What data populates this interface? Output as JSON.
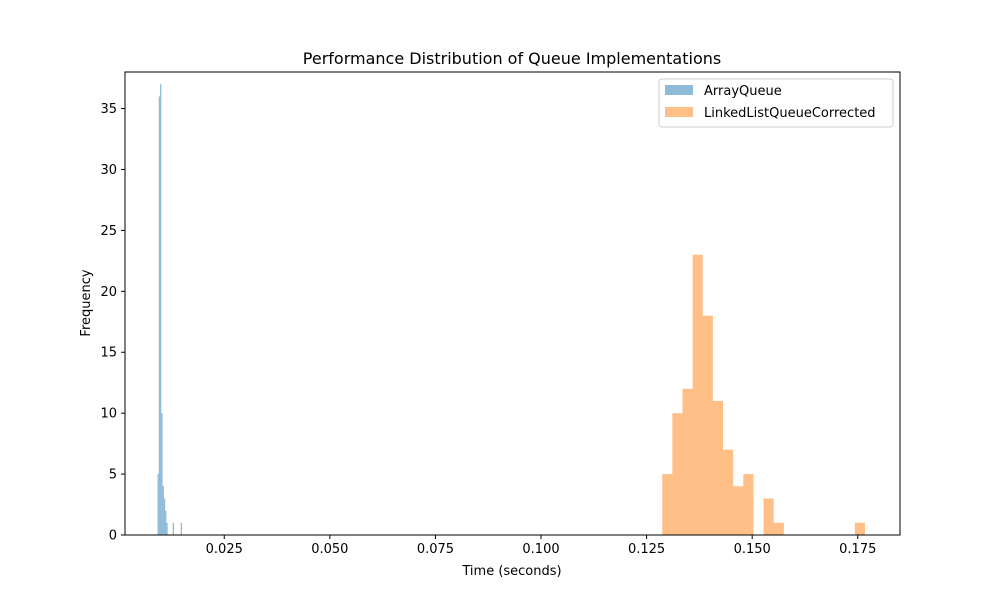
{
  "chart_data": {
    "type": "histogram",
    "title": "Performance Distribution of Queue Implementations",
    "xlabel": "Time (seconds)",
    "ylabel": "Frequency",
    "xlim": [
      0.0015,
      0.185
    ],
    "ylim": [
      0,
      38
    ],
    "xticks": [
      0.025,
      0.05,
      0.075,
      0.1,
      0.125,
      0.15,
      0.175
    ],
    "xtick_labels": [
      "0.025",
      "0.050",
      "0.075",
      "0.100",
      "0.125",
      "0.150",
      "0.175"
    ],
    "yticks": [
      0,
      5,
      10,
      15,
      20,
      25,
      30,
      35
    ],
    "ytick_labels": [
      "0",
      "5",
      "10",
      "15",
      "20",
      "25",
      "30",
      "35"
    ],
    "grid": false,
    "legend_position": "top-right",
    "series": [
      {
        "name": "ArrayQueue",
        "color": "#1f77b4",
        "alpha": 0.5,
        "bins": [
          {
            "x0": 0.0092,
            "x1": 0.0095,
            "count": 5
          },
          {
            "x0": 0.0095,
            "x1": 0.0098,
            "count": 36
          },
          {
            "x0": 0.0098,
            "x1": 0.0101,
            "count": 37
          },
          {
            "x0": 0.0101,
            "x1": 0.0104,
            "count": 10
          },
          {
            "x0": 0.0104,
            "x1": 0.0107,
            "count": 4
          },
          {
            "x0": 0.0107,
            "x1": 0.011,
            "count": 3
          },
          {
            "x0": 0.011,
            "x1": 0.0113,
            "count": 2
          },
          {
            "x0": 0.0113,
            "x1": 0.0116,
            "count": 1
          },
          {
            "x0": 0.0128,
            "x1": 0.0131,
            "count": 1
          },
          {
            "x0": 0.0147,
            "x1": 0.015,
            "count": 1
          }
        ]
      },
      {
        "name": "LinkedListQueueCorrected",
        "color": "#ff7f0e",
        "alpha": 0.5,
        "bins": [
          {
            "x0": 0.1287,
            "x1": 0.1311,
            "count": 5
          },
          {
            "x0": 0.1311,
            "x1": 0.1335,
            "count": 10
          },
          {
            "x0": 0.1335,
            "x1": 0.1359,
            "count": 12
          },
          {
            "x0": 0.1359,
            "x1": 0.1383,
            "count": 23
          },
          {
            "x0": 0.1383,
            "x1": 0.1407,
            "count": 18
          },
          {
            "x0": 0.1407,
            "x1": 0.1431,
            "count": 11
          },
          {
            "x0": 0.1431,
            "x1": 0.1455,
            "count": 7
          },
          {
            "x0": 0.1455,
            "x1": 0.1479,
            "count": 4
          },
          {
            "x0": 0.1479,
            "x1": 0.1503,
            "count": 5
          },
          {
            "x0": 0.1527,
            "x1": 0.1551,
            "count": 3
          },
          {
            "x0": 0.1551,
            "x1": 0.1575,
            "count": 1
          },
          {
            "x0": 0.1743,
            "x1": 0.1767,
            "count": 1
          }
        ]
      }
    ]
  }
}
